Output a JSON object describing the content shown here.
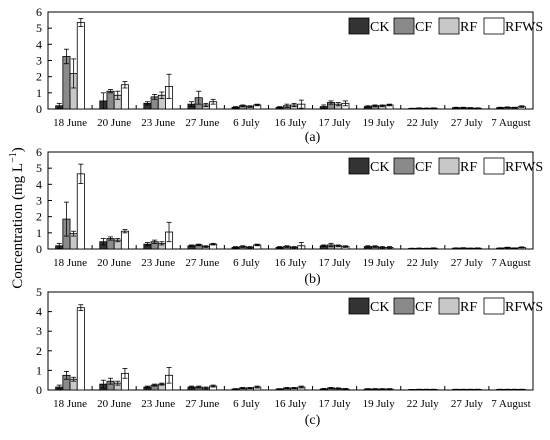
{
  "figure": {
    "ylabel": "Concentration (mg L",
    "ylabel_sup": "−1",
    "ylabel_close": ")"
  },
  "chart_data": [
    {
      "type": "bar",
      "panel_label": "(a)",
      "categories": [
        "18 June",
        "20 June",
        "23 June",
        "27 June",
        "6 July",
        "16 July",
        "17 July",
        "19 July",
        "22 July",
        "27 July",
        "7 August"
      ],
      "ylim": [
        0,
        6
      ],
      "yticks": [
        0,
        1,
        2,
        3,
        4,
        5,
        6
      ],
      "legend": [
        "CK",
        "CF",
        "RF",
        "RFWS"
      ],
      "legend_position": "top-right",
      "series": [
        {
          "name": "CK",
          "color": "#333333",
          "values": [
            0.2,
            0.5,
            0.35,
            0.3,
            0.1,
            0.1,
            0.15,
            0.15,
            0.03,
            0.08,
            0.08
          ],
          "errors": [
            0.15,
            0.5,
            0.1,
            0.15,
            0.05,
            0.05,
            0.1,
            0.05,
            0.02,
            0.03,
            0.03
          ]
        },
        {
          "name": "CF",
          "color": "#8a8a8a",
          "values": [
            3.25,
            1.1,
            0.75,
            0.7,
            0.2,
            0.2,
            0.4,
            0.2,
            0.05,
            0.08,
            0.1
          ],
          "errors": [
            0.45,
            0.1,
            0.15,
            0.4,
            0.05,
            0.1,
            0.1,
            0.05,
            0.02,
            0.03,
            0.03
          ]
        },
        {
          "name": "RF",
          "color": "#c8c8c8",
          "values": [
            2.2,
            0.85,
            0.85,
            0.25,
            0.15,
            0.25,
            0.3,
            0.2,
            0.04,
            0.06,
            0.08
          ],
          "errors": [
            0.9,
            0.25,
            0.2,
            0.1,
            0.05,
            0.1,
            0.1,
            0.05,
            0.02,
            0.03,
            0.03
          ]
        },
        {
          "name": "RFWS",
          "color": "#ffffff",
          "values": [
            5.35,
            1.5,
            1.4,
            0.45,
            0.25,
            0.3,
            0.35,
            0.25,
            0.05,
            0.05,
            0.15
          ],
          "errors": [
            0.25,
            0.2,
            0.75,
            0.15,
            0.05,
            0.25,
            0.15,
            0.05,
            0.02,
            0.02,
            0.05
          ]
        }
      ]
    },
    {
      "type": "bar",
      "panel_label": "(b)",
      "categories": [
        "18 June",
        "20 June",
        "23 June",
        "27 June",
        "6 July",
        "16 July",
        "17 July",
        "19 July",
        "22 July",
        "27 July",
        "7 August"
      ],
      "ylim": [
        0,
        6
      ],
      "yticks": [
        0,
        1,
        2,
        3,
        4,
        5,
        6
      ],
      "legend": [
        "CK",
        "CF",
        "RF",
        "RFWS"
      ],
      "legend_position": "top-right",
      "series": [
        {
          "name": "CK",
          "color": "#333333",
          "values": [
            0.2,
            0.45,
            0.3,
            0.2,
            0.1,
            0.1,
            0.2,
            0.15,
            0.03,
            0.05,
            0.05
          ],
          "errors": [
            0.15,
            0.2,
            0.1,
            0.05,
            0.05,
            0.05,
            0.05,
            0.05,
            0.02,
            0.02,
            0.02
          ]
        },
        {
          "name": "CF",
          "color": "#8a8a8a",
          "values": [
            1.85,
            0.65,
            0.45,
            0.25,
            0.15,
            0.15,
            0.25,
            0.15,
            0.04,
            0.06,
            0.08
          ],
          "errors": [
            1.05,
            0.1,
            0.1,
            0.05,
            0.05,
            0.05,
            0.1,
            0.05,
            0.02,
            0.02,
            0.03
          ]
        },
        {
          "name": "RF",
          "color": "#c8c8c8",
          "values": [
            0.95,
            0.55,
            0.35,
            0.15,
            0.1,
            0.1,
            0.2,
            0.1,
            0.03,
            0.04,
            0.05
          ],
          "errors": [
            0.15,
            0.1,
            0.1,
            0.05,
            0.05,
            0.05,
            0.05,
            0.05,
            0.02,
            0.02,
            0.02
          ]
        },
        {
          "name": "RFWS",
          "color": "#ffffff",
          "values": [
            4.65,
            1.1,
            1.05,
            0.3,
            0.25,
            0.2,
            0.15,
            0.1,
            0.05,
            0.05,
            0.1
          ],
          "errors": [
            0.6,
            0.1,
            0.6,
            0.05,
            0.05,
            0.2,
            0.05,
            0.05,
            0.02,
            0.02,
            0.03
          ]
        }
      ]
    },
    {
      "type": "bar",
      "panel_label": "(c)",
      "categories": [
        "18 June",
        "20 June",
        "23 June",
        "27 June",
        "6 July",
        "16 July",
        "17 July",
        "19 July",
        "22 July",
        "27 July",
        "7 August"
      ],
      "ylim": [
        0,
        5
      ],
      "yticks": [
        0,
        1,
        2,
        3,
        4,
        5
      ],
      "legend": [
        "CK",
        "CF",
        "RF",
        "RFWS"
      ],
      "legend_position": "top-right",
      "series": [
        {
          "name": "CK",
          "color": "#333333",
          "values": [
            0.15,
            0.3,
            0.15,
            0.15,
            0.05,
            0.05,
            0.05,
            0.05,
            0.02,
            0.03,
            0.03
          ],
          "errors": [
            0.1,
            0.2,
            0.05,
            0.05,
            0.02,
            0.02,
            0.03,
            0.02,
            0.01,
            0.01,
            0.01
          ]
        },
        {
          "name": "CF",
          "color": "#8a8a8a",
          "values": [
            0.75,
            0.45,
            0.25,
            0.15,
            0.1,
            0.1,
            0.1,
            0.05,
            0.03,
            0.03,
            0.03
          ],
          "errors": [
            0.2,
            0.15,
            0.05,
            0.05,
            0.03,
            0.03,
            0.03,
            0.02,
            0.01,
            0.01,
            0.01
          ]
        },
        {
          "name": "RF",
          "color": "#c8c8c8",
          "values": [
            0.55,
            0.35,
            0.3,
            0.1,
            0.1,
            0.1,
            0.08,
            0.05,
            0.03,
            0.03,
            0.03
          ],
          "errors": [
            0.1,
            0.1,
            0.05,
            0.05,
            0.03,
            0.03,
            0.03,
            0.02,
            0.01,
            0.01,
            0.01
          ]
        },
        {
          "name": "RFWS",
          "color": "#ffffff",
          "values": [
            4.2,
            0.85,
            0.75,
            0.2,
            0.15,
            0.15,
            0.05,
            0.05,
            0.03,
            0.03,
            0.03
          ],
          "errors": [
            0.15,
            0.25,
            0.4,
            0.05,
            0.05,
            0.05,
            0.03,
            0.02,
            0.01,
            0.01,
            0.01
          ]
        }
      ]
    }
  ]
}
